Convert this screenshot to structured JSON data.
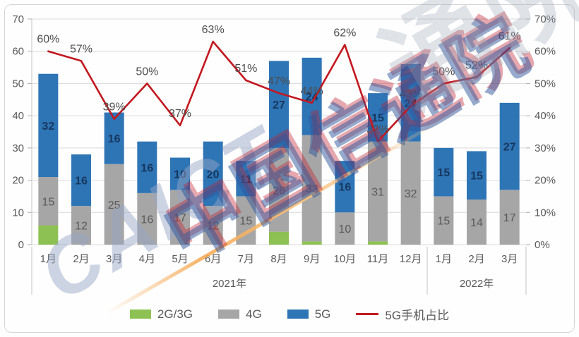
{
  "watermark": {
    "latin": "CAICT",
    "cjk": "中国信通院",
    "cjk_faint": "通院"
  },
  "legend": [
    {
      "label": "2G/3G",
      "color": "#8dc153",
      "type": "swatch"
    },
    {
      "label": "4G",
      "color": "#a6a6a6",
      "type": "swatch"
    },
    {
      "label": "5G",
      "color": "#2e75b6",
      "type": "swatch"
    },
    {
      "label": "5G手机占比",
      "color": "#c2181f",
      "type": "line"
    }
  ],
  "chart_data": {
    "type": "bar",
    "subtype": "stacked-bars-with-percentage-line",
    "categories": [
      "1月",
      "2月",
      "3月",
      "4月",
      "5月",
      "6月",
      "7月",
      "8月",
      "9月",
      "10月",
      "11月",
      "12月",
      "1月",
      "2月",
      "3月"
    ],
    "year_groups": [
      {
        "label": "2021年",
        "span": 12
      },
      {
        "label": "2022年",
        "span": 3
      }
    ],
    "series": [
      {
        "name": "2G/3G",
        "color": "#8dc153",
        "values": [
          6,
          0,
          0,
          0,
          0,
          0,
          0,
          4,
          1,
          0,
          1,
          0,
          0,
          0,
          0
        ],
        "labels_visible": false
      },
      {
        "name": "4G",
        "color": "#a6a6a6",
        "values": [
          15,
          12,
          25,
          16,
          17,
          12,
          15,
          26,
          33,
          10,
          31,
          32,
          15,
          14,
          17
        ],
        "labels_visible": true,
        "label_color": "#595959",
        "label_bold": false
      },
      {
        "name": "5G",
        "color": "#2e75b6",
        "values": [
          32,
          16,
          16,
          16,
          10,
          20,
          11,
          27,
          24,
          16,
          15,
          24,
          15,
          15,
          27
        ],
        "labels_visible": true,
        "label_color": "#17375e",
        "label_bold": true
      }
    ],
    "line_series": {
      "name": "5G手机占比",
      "color": "#c2181f",
      "values": [
        60,
        57,
        39,
        50,
        37,
        63,
        51,
        47,
        44,
        62,
        32,
        43,
        50,
        52,
        61
      ],
      "labels": [
        "60%",
        "57%",
        "39%",
        "50%",
        "37%",
        "63%",
        "51%",
        "47%",
        "44%",
        "62%",
        "32%",
        "43%",
        "50%",
        "52%",
        "61%"
      ]
    },
    "left_axis": {
      "min": 0,
      "max": 70,
      "ticks": [
        "0",
        "10",
        "20",
        "30",
        "40",
        "50",
        "60",
        "70"
      ]
    },
    "right_axis": {
      "min": 0,
      "max": 70,
      "ticks": [
        "0%",
        "10%",
        "20%",
        "30%",
        "40%",
        "50%",
        "60%",
        "70%"
      ]
    },
    "grid": true,
    "legend_position": "bottom"
  }
}
